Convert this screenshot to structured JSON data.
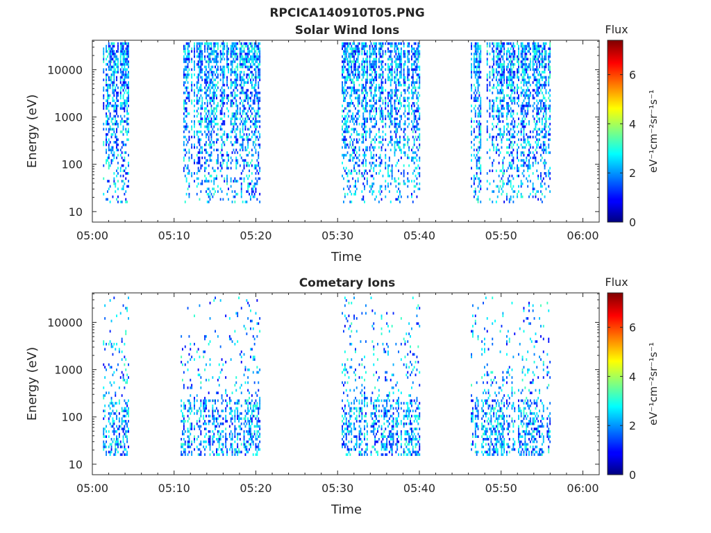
{
  "figure": {
    "title": "RPCICA140910T05.PNG"
  },
  "chart_data": [
    {
      "type": "heatmap",
      "title": "Solar Wind Ions",
      "xlabel": "Time",
      "ylabel": "Energy (eV)",
      "x_ticks": [
        "05:00",
        "05:10",
        "05:20",
        "05:30",
        "05:40",
        "05:50",
        "06:00"
      ],
      "x_range_minutes": [
        0,
        62
      ],
      "y_scale": "log",
      "y_ticks": [
        "10",
        "100",
        "1000",
        "10000"
      ],
      "y_range_eV": [
        6,
        42000
      ],
      "colorbar": {
        "title": "Flux",
        "label": "eV⁻¹cm⁻²sr⁻¹s⁻¹",
        "ticks": [
          "0",
          "2",
          "4",
          "6"
        ],
        "range": [
          0,
          7.4
        ],
        "colormap": "jet"
      },
      "activity_intervals_minutes": [
        [
          1.3,
          4.5
        ],
        [
          10.8,
          20.5
        ],
        [
          30.5,
          40.0
        ],
        [
          46.3,
          56.0
        ]
      ],
      "energy_range_eV": [
        15,
        38000
      ],
      "flux_range_observed": [
        0.8,
        3.3
      ],
      "dense": true
    },
    {
      "type": "heatmap",
      "title": "Cometary Ions",
      "xlabel": "Time",
      "ylabel": "Energy (eV)",
      "x_ticks": [
        "05:00",
        "05:10",
        "05:20",
        "05:30",
        "05:40",
        "05:50",
        "06:00"
      ],
      "x_range_minutes": [
        0,
        62
      ],
      "y_scale": "log",
      "y_ticks": [
        "10",
        "100",
        "1000",
        "10000"
      ],
      "y_range_eV": [
        6,
        42000
      ],
      "colorbar": {
        "title": "Flux",
        "label": "eV⁻¹cm⁻²sr⁻¹s⁻¹",
        "ticks": [
          "0",
          "2",
          "4",
          "6"
        ],
        "range": [
          0,
          7.4
        ],
        "colormap": "jet"
      },
      "activity_intervals_minutes": [
        [
          1.3,
          4.5
        ],
        [
          10.8,
          20.5
        ],
        [
          30.5,
          40.0
        ],
        [
          46.3,
          56.0
        ]
      ],
      "energy_range_eV": [
        15,
        35000
      ],
      "flux_range_observed": [
        0.8,
        3.3
      ],
      "dense": false
    }
  ]
}
